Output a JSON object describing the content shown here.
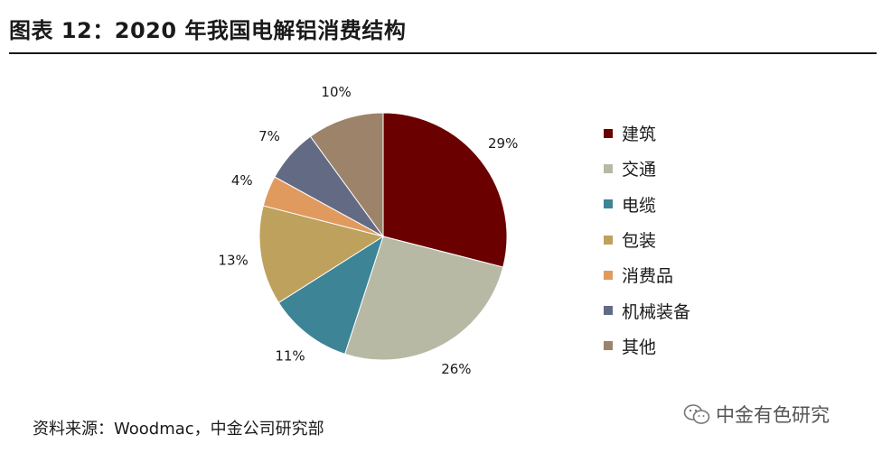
{
  "header": {
    "title": "图表 12：2020 年我国电解铝消费结构"
  },
  "chart_data": {
    "type": "pie",
    "title": "图表 12：2020 年我国电解铝消费结构",
    "slices": [
      {
        "label": "建筑",
        "value": 29,
        "display": "29%",
        "color": "#6a0000"
      },
      {
        "label": "交通",
        "value": 26,
        "display": "26%",
        "color": "#b8b9a5"
      },
      {
        "label": "电缆",
        "value": 11,
        "display": "11%",
        "color": "#3c8496"
      },
      {
        "label": "包装",
        "value": 13,
        "display": "13%",
        "color": "#bea15c"
      },
      {
        "label": "消费品",
        "value": 4,
        "display": "4%",
        "color": "#e09a5e"
      },
      {
        "label": "机械装备",
        "value": 7,
        "display": "7%",
        "color": "#636b84"
      },
      {
        "label": "其他",
        "value": 10,
        "display": "10%",
        "color": "#9c836a"
      }
    ],
    "legend_position": "right"
  },
  "footer": {
    "source": "资料来源：Woodmac，中金公司研究部"
  },
  "watermark": {
    "text": "中金有色研究",
    "icon": "wechat-icon"
  }
}
